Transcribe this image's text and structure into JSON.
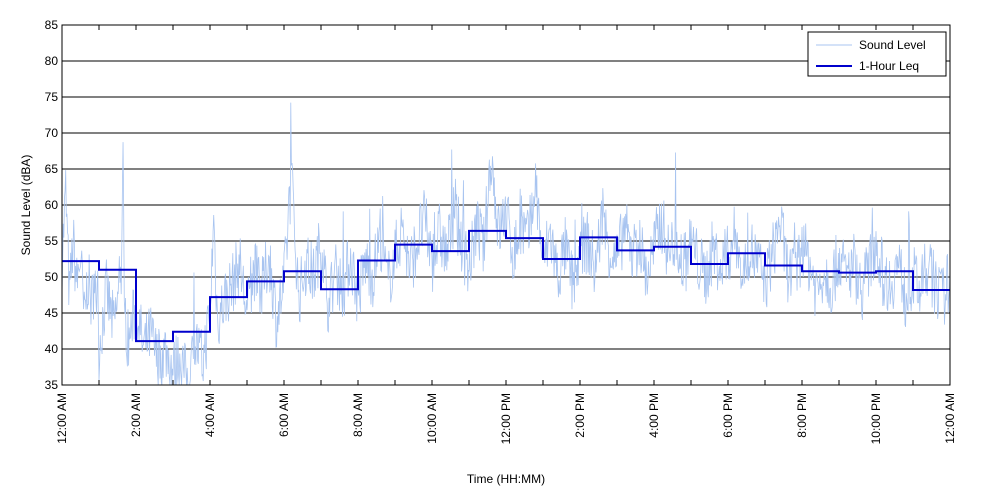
{
  "chart_data": {
    "type": "line",
    "title": "",
    "xlabel": "Time (HH:MM)",
    "ylabel": "Sound Level (dBA)",
    "ylim": [
      35,
      85
    ],
    "yticks": [
      35,
      40,
      45,
      50,
      55,
      60,
      65,
      70,
      75,
      80,
      85
    ],
    "xlim_hours": [
      0,
      24
    ],
    "xtick_hours": [
      0,
      2,
      4,
      6,
      8,
      10,
      12,
      14,
      16,
      18,
      20,
      22,
      24
    ],
    "xtick_labels": [
      "12:00 AM",
      "2:00 AM",
      "4:00 AM",
      "6:00 AM",
      "8:00 AM",
      "10:00 AM",
      "12:00 PM",
      "2:00 PM",
      "4:00 PM",
      "6:00 PM",
      "8:00 PM",
      "10:00 PM",
      "12:00 AM"
    ],
    "grid": "horizontal",
    "legend_position": "top-right",
    "series": [
      {
        "name": "Sound Level",
        "color": "#a8c4f0",
        "style": "thin-noisy-line",
        "hours": [
          0,
          0.1,
          0.2,
          0.3,
          0.4,
          0.5,
          0.6,
          0.7,
          0.8,
          0.9,
          1.0,
          1.2,
          1.4,
          1.6,
          1.65,
          1.7,
          1.8,
          2.0,
          2.2,
          2.4,
          2.6,
          2.8,
          3.0,
          3.2,
          3.4,
          3.6,
          3.8,
          4.0,
          4.1,
          4.2,
          4.4,
          4.6,
          4.8,
          5.0,
          5.2,
          5.4,
          5.6,
          5.8,
          6.0,
          6.2,
          6.4,
          6.6,
          6.8,
          7.0,
          7.2,
          7.4,
          7.6,
          7.8,
          8.0,
          8.2,
          8.4,
          8.6,
          8.8,
          9.0,
          9.2,
          9.4,
          9.6,
          9.8,
          10.0,
          10.2,
          10.4,
          10.6,
          10.8,
          11.0,
          11.2,
          11.4,
          11.6,
          11.8,
          12.0,
          12.2,
          12.4,
          12.6,
          12.8,
          13.0,
          13.2,
          13.4,
          13.6,
          13.8,
          14.0,
          14.2,
          14.4,
          14.6,
          14.8,
          15.0,
          15.2,
          15.4,
          15.6,
          15.8,
          16.0,
          16.2,
          16.4,
          16.6,
          16.8,
          17.0,
          17.2,
          17.4,
          17.6,
          17.8,
          18.0,
          18.2,
          18.4,
          18.6,
          18.8,
          19.0,
          19.2,
          19.4,
          19.6,
          19.8,
          20.0,
          20.2,
          20.4,
          20.6,
          20.8,
          21.0,
          21.2,
          21.4,
          21.6,
          21.8,
          22.0,
          22.2,
          22.4,
          22.6,
          22.8,
          23.0,
          23.2,
          23.4,
          23.6,
          23.8,
          24.0
        ],
        "values": [
          52,
          62,
          47,
          55,
          49,
          53,
          44,
          50,
          46,
          51,
          40,
          48,
          43,
          50,
          65,
          44,
          41,
          46,
          40,
          42,
          38,
          40,
          37,
          39,
          35,
          41,
          38,
          45,
          58,
          44,
          47,
          49,
          52,
          45,
          51,
          48,
          53,
          44,
          49,
          64,
          47,
          52,
          50,
          55,
          46,
          51,
          48,
          53,
          47,
          52,
          50,
          56,
          49,
          53,
          57,
          51,
          55,
          58,
          52,
          56,
          53,
          59,
          55,
          51,
          57,
          54,
          67,
          56,
          59,
          53,
          57,
          55,
          63,
          52,
          56,
          50,
          54,
          49,
          53,
          55,
          51,
          58,
          54,
          52,
          57,
          53,
          55,
          50,
          54,
          58,
          53,
          56,
          51,
          55,
          52,
          50,
          54,
          51,
          53,
          56,
          50,
          54,
          52,
          49,
          53,
          58,
          51,
          50,
          54,
          52,
          48,
          51,
          49,
          53,
          50,
          52,
          48,
          51,
          55,
          50,
          49,
          52,
          47,
          50,
          48,
          51,
          49,
          47,
          50
        ]
      },
      {
        "name": "1-Hour Leq",
        "color": "#0000cc",
        "style": "step",
        "hour_starts": [
          0,
          1,
          2,
          3,
          4,
          5,
          6,
          7,
          8,
          9,
          10,
          11,
          12,
          13,
          14,
          15,
          16,
          17,
          18,
          19,
          20,
          21,
          22,
          23
        ],
        "values": [
          52.2,
          51.0,
          41.1,
          42.4,
          47.2,
          49.4,
          50.8,
          48.3,
          52.3,
          54.5,
          53.6,
          56.4,
          55.4,
          52.5,
          55.5,
          53.7,
          54.2,
          51.8,
          53.3,
          51.6,
          50.8,
          50.6,
          50.8,
          48.2
        ]
      }
    ]
  }
}
